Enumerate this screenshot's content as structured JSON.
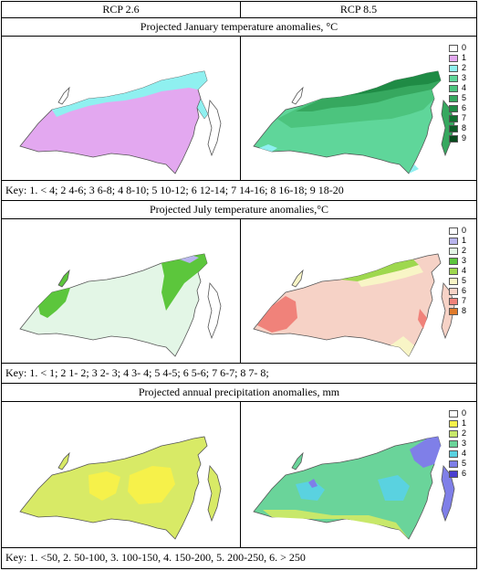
{
  "header": {
    "left": "RCP 2.6",
    "right": "RCP 8.5"
  },
  "sections": [
    {
      "title": "Projected January temperature anomalies, °C",
      "key": "Key: 1. < 4; 2 4-6; 3 6-8; 4 8-10; 5 10-12; 6 12-14; 7 14-16; 8 16-18; 9 18-20",
      "legend_labels": [
        "0",
        "1",
        "2",
        "3",
        "4",
        "5",
        "6",
        "7",
        "8",
        "9"
      ],
      "legend_colors": [
        "#ffffff",
        "#e3a8f0",
        "#8ff0f0",
        "#5fd69a",
        "#4cc47e",
        "#36a85f",
        "#1f8b45",
        "#10702f",
        "#0b5a25",
        "#084a1d"
      ],
      "left_map_colors": [
        "#e3a8f0",
        "#8ff0f0"
      ],
      "right_map_colors": [
        "#5fd69a",
        "#4cc47e",
        "#36a85f",
        "#1f8b45",
        "#8ff0f0"
      ]
    },
    {
      "title": "Projected July temperature anomalies,°C",
      "key": "Key: 1. < 1; 2 1- 2; 3 2- 3; 4 3- 4; 5 4-5; 6 5-6; 7 6-7; 8 7- 8;",
      "legend_labels": [
        "0",
        "1",
        "2",
        "3",
        "4",
        "5",
        "6",
        "7",
        "8"
      ],
      "legend_colors": [
        "#ffffff",
        "#b8b4ee",
        "#e3f6e6",
        "#5cc63c",
        "#9ed84e",
        "#f8f5c6",
        "#f6d2c6",
        "#f0827a",
        "#e07a2a"
      ],
      "left_map_colors": [
        "#e3f6e6",
        "#5cc63c",
        "#b8b4ee"
      ],
      "right_map_colors": [
        "#f6d2c6",
        "#f0827a",
        "#f8f5c6",
        "#9ed84e"
      ]
    },
    {
      "title": "Projected annual precipitation anomalies, mm",
      "key": "Key: 1. <50, 2. 50-100, 3. 100-150, 4. 150-200, 5. 200-250, 6. > 250",
      "legend_labels": [
        "0",
        "1",
        "2",
        "3",
        "4",
        "5",
        "6"
      ],
      "legend_colors": [
        "#ffffff",
        "#f6f14a",
        "#c8e86a",
        "#6ad49a",
        "#5ad2e0",
        "#7f7fe8",
        "#4a3fd0"
      ],
      "left_map_colors": [
        "#d8ea66",
        "#f6f14a"
      ],
      "right_map_colors": [
        "#6ad49a",
        "#5ad2e0",
        "#c8e86a",
        "#7f7fe8"
      ]
    }
  ]
}
